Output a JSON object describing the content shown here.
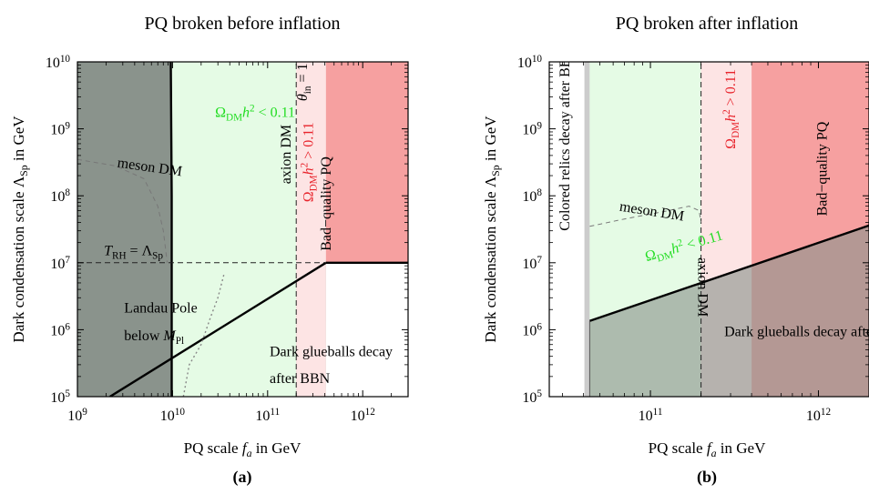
{
  "figure": {
    "sub_captions": [
      "(a)",
      "(b)"
    ]
  },
  "colors": {
    "grey_region": "#8a938c",
    "dark_grey_region": "#6b736c",
    "green_region": "#e5fbe5",
    "light_pink_region": "#fde4e4",
    "red_region": "#f6a0a0",
    "red_grey_overlap": "#b06868",
    "green_text": "#22dd22",
    "red_text": "#e8232b"
  },
  "chart_data": [
    {
      "type": "area",
      "title": "PQ broken before inflation",
      "xlabel": "PQ scale f_a in GeV",
      "ylabel": "Dark condensation scale Λ_Sp in GeV",
      "xscale": "log",
      "yscale": "log",
      "xlim": [
        1000000000.0,
        3000000000000.0
      ],
      "ylim": [
        100000.0,
        10000000000.0
      ],
      "x_ticks": [
        {
          "value": 1000000000.0,
          "mant": "10",
          "exp": "9"
        },
        {
          "value": 10000000000.0,
          "mant": "10",
          "exp": "10"
        },
        {
          "value": 100000000000.0,
          "mant": "10",
          "exp": "11"
        },
        {
          "value": 1000000000000.0,
          "mant": "10",
          "exp": "12"
        }
      ],
      "y_ticks": [
        {
          "value": 100000.0,
          "mant": "10",
          "exp": "5"
        },
        {
          "value": 1000000.0,
          "mant": "10",
          "exp": "6"
        },
        {
          "value": 10000000.0,
          "mant": "10",
          "exp": "7"
        },
        {
          "value": 100000000.0,
          "mant": "10",
          "exp": "8"
        },
        {
          "value": 1000000000.0,
          "mant": "10",
          "exp": "9"
        },
        {
          "value": 10000000000.0,
          "mant": "10",
          "exp": "10"
        }
      ],
      "regions": [
        {
          "name": "landau-pole",
          "color": "grey_region",
          "points": [
            [
              1000000000.0,
              100000.0
            ],
            [
              1000000000.0,
              10000000000.0
            ],
            [
              9800000000.0,
              10000000000.0
            ],
            [
              9800000000.0,
              100000.0
            ]
          ]
        },
        {
          "name": "glueball-wedge",
          "color": "grey_region",
          "points": [
            [
              2200000000.0,
              100000.0
            ],
            [
              410000000000.0,
              10000000.0
            ],
            [
              410000000000.0,
              100000.0
            ]
          ]
        },
        {
          "name": "green-allowed",
          "color": "green_region",
          "points": [
            [
              9800000000.0,
              100000.0
            ],
            [
              9800000000.0,
              10000000000.0
            ],
            [
              200000000000.0,
              10000000000.0
            ],
            [
              200000000000.0,
              100000.0
            ]
          ]
        },
        {
          "name": "overclosure",
          "color": "light_pink_region",
          "points": [
            [
              200000000000.0,
              100000.0
            ],
            [
              200000000000.0,
              10000000000.0
            ],
            [
              410000000000.0,
              10000000000.0
            ],
            [
              410000000000.0,
              100000.0
            ]
          ]
        },
        {
          "name": "bad-quality",
          "color": "red_region",
          "points": [
            [
              410000000000.0,
              10000000.0
            ],
            [
              410000000000.0,
              10000000000.0
            ],
            [
              3000000000000.0,
              10000000000.0
            ],
            [
              3000000000000.0,
              10000000.0
            ]
          ]
        }
      ],
      "lines": [
        {
          "name": "landau-boundary",
          "style": "solid-thick",
          "points": [
            [
              9600000000.0,
              10000000000.0
            ],
            [
              9700000000.0,
              1000000000.0
            ],
            [
              9800000000.0,
              100000000.0
            ],
            [
              9800000000.0,
              100000.0
            ]
          ]
        },
        {
          "name": "glueball-bbn-boundary",
          "style": "solid-thick",
          "points": [
            [
              2200000000.0,
              100000.0
            ],
            [
              410000000000.0,
              10000000.0
            ]
          ]
        },
        {
          "name": "bad-quality-boundary",
          "style": "solid-thick",
          "points": [
            [
              410000000000.0,
              10000000.0
            ],
            [
              3000000000000.0,
              10000000.0
            ]
          ]
        },
        {
          "name": "reheating-line",
          "style": "dashed",
          "points": [
            [
              1000000000.0,
              10000000.0
            ],
            [
              410000000000.0,
              10000000.0
            ]
          ]
        },
        {
          "name": "axion-dm-line",
          "style": "dashed",
          "points": [
            [
              200000000000.0,
              100000.0
            ],
            [
              200000000000.0,
              10000000000.0
            ]
          ]
        },
        {
          "name": "meson-dm-curve",
          "style": "dashed-grey",
          "points": [
            [
              1000000000.0,
              350000000.0
            ],
            [
              2500000000.0,
              280000000.0
            ],
            [
              5000000000.0,
              180000000.0
            ],
            [
              7000000000.0,
              70000000.0
            ],
            [
              8000000000.0,
              30000000.0
            ],
            [
              8800000000.0,
              10000000.0
            ]
          ]
        },
        {
          "name": "meson-dm-curve-lower",
          "style": "dotted-grey",
          "points": [
            [
              13000000000.0,
              100000.0
            ],
            [
              15000000000.0,
              300000.0
            ],
            [
              20000000000.0,
              600000.0
            ],
            [
              25000000000.0,
              1500000.0
            ],
            [
              30000000000.0,
              3000000.0
            ],
            [
              35000000000.0,
              7000000.0
            ]
          ]
        }
      ],
      "annotations": [
        {
          "id": "a-green",
          "parts": [
            {
              "t": "Ω",
              "c": "green_text"
            },
            {
              "t": "DM",
              "sub": true,
              "c": "green_text"
            },
            {
              "t": "h",
              "it": true,
              "c": "green_text"
            },
            {
              "t": "2",
              "sup": true,
              "c": "green_text"
            },
            {
              "t": " < 0.11",
              "c": "green_text"
            }
          ],
          "x": 28000000000.0,
          "y": 1500000000.0
        },
        {
          "id": "a-meson",
          "parts": [
            {
              "t": "meson DM"
            }
          ],
          "x": 2600000000.0,
          "y": 270000000.0,
          "rotate": 8
        },
        {
          "id": "a-trh",
          "parts": [
            {
              "t": "T",
              "it": true
            },
            {
              "t": "RH",
              "sub": true
            },
            {
              "t": " = Λ"
            },
            {
              "t": "Sp",
              "sub": true
            }
          ],
          "x": 1900000000.0,
          "y": 13000000.0
        },
        {
          "id": "a-theta",
          "parts": [
            {
              "t": "θ",
              "it": true
            },
            {
              "t": "in",
              "sub": true
            },
            {
              "t": " = 1"
            }
          ],
          "x": 260000000000.0,
          "y": 2600000000.0,
          "rotate": -90
        },
        {
          "id": "a-axion",
          "parts": [
            {
              "t": "axion DM"
            }
          ],
          "x": 175000000000.0,
          "y": 150000000.0,
          "rotate": -90
        },
        {
          "id": "a-red",
          "parts": [
            {
              "t": "Ω",
              "c": "red_text"
            },
            {
              "t": "DM",
              "sub": true,
              "c": "red_text"
            },
            {
              "t": "h",
              "it": true,
              "c": "red_text"
            },
            {
              "t": "2",
              "sup": true,
              "c": "red_text"
            },
            {
              "t": " > 0.11",
              "c": "red_text"
            }
          ],
          "x": 300000000000.0,
          "y": 80000000.0,
          "rotate": -90
        },
        {
          "id": "a-badpq",
          "parts": [
            {
              "t": "Bad−quality PQ"
            }
          ],
          "x": 460000000000.0,
          "y": 15000000.0,
          "rotate": -90
        },
        {
          "id": "a-landau1",
          "parts": [
            {
              "t": "Landau Pole"
            }
          ],
          "x": 3100000000.0,
          "y": 1800000.0
        },
        {
          "id": "a-landau2",
          "parts": [
            {
              "t": "below "
            },
            {
              "t": "M",
              "it": true
            },
            {
              "t": "Pl",
              "sub": true
            }
          ],
          "x": 3100000000.0,
          "y": 700000.0
        },
        {
          "id": "a-glue1",
          "parts": [
            {
              "t": "Dark glueballs decay"
            }
          ],
          "x": 105000000000.0,
          "y": 400000.0
        },
        {
          "id": "a-glue2",
          "parts": [
            {
              "t": "after BBN"
            }
          ],
          "x": 105000000000.0,
          "y": 160000.0
        }
      ]
    },
    {
      "type": "area",
      "title": "PQ broken after inflation",
      "xlabel": "PQ scale f_a in GeV",
      "ylabel": "Dark condensation scale Λ_Sp in GeV",
      "xscale": "log",
      "yscale": "log",
      "xlim": [
        25000000000.0,
        2000000000000.0
      ],
      "ylim": [
        100000.0,
        10000000000.0
      ],
      "x_ticks": [
        {
          "value": 100000000000.0,
          "mant": "10",
          "exp": "11"
        },
        {
          "value": 1000000000000.0,
          "mant": "10",
          "exp": "12"
        }
      ],
      "y_ticks": [
        {
          "value": 100000.0,
          "mant": "10",
          "exp": "5"
        },
        {
          "value": 1000000.0,
          "mant": "10",
          "exp": "6"
        },
        {
          "value": 10000000.0,
          "mant": "10",
          "exp": "7"
        },
        {
          "value": 100000000.0,
          "mant": "10",
          "exp": "8"
        },
        {
          "value": 1000000000.0,
          "mant": "10",
          "exp": "9"
        },
        {
          "value": 10000000000.0,
          "mant": "10",
          "exp": "10"
        }
      ],
      "regions": [
        {
          "name": "colored-relics-band",
          "color": "#cccccc",
          "points": [
            [
              40500000000.0,
              100000.0
            ],
            [
              40500000000.0,
              10000000000.0
            ],
            [
              43500000000.0,
              10000000000.0
            ],
            [
              43500000000.0,
              100000.0
            ]
          ]
        },
        {
          "name": "green-allowed",
          "color": "green_region",
          "points": [
            [
              43500000000.0,
              100000.0
            ],
            [
              43500000000.0,
              10000000000.0
            ],
            [
              200000000000.0,
              10000000000.0
            ],
            [
              200000000000.0,
              100000.0
            ]
          ]
        },
        {
          "name": "overclosure",
          "color": "light_pink_region",
          "points": [
            [
              200000000000.0,
              100000.0
            ],
            [
              200000000000.0,
              10000000000.0
            ],
            [
              400000000000.0,
              10000000000.0
            ],
            [
              400000000000.0,
              100000.0
            ]
          ]
        },
        {
          "name": "bad-quality",
          "color": "red_region",
          "points": [
            [
              400000000000.0,
              100000.0
            ],
            [
              400000000000.0,
              10000000000.0
            ],
            [
              2000000000000.0,
              10000000000.0
            ],
            [
              2000000000000.0,
              100000.0
            ]
          ]
        },
        {
          "name": "glueball-region",
          "color": "grey_region",
          "points": [
            [
              43500000000.0,
              100000.0
            ],
            [
              43500000000.0,
              1350000.0
            ],
            [
              2000000000000.0,
              36000000.0
            ],
            [
              2000000000000.0,
              100000.0
            ]
          ]
        }
      ],
      "lines": [
        {
          "name": "glueball-bbn-boundary",
          "style": "solid-thick",
          "points": [
            [
              43500000000.0,
              1350000.0
            ],
            [
              2000000000000.0,
              36000000.0
            ]
          ]
        },
        {
          "name": "glueball-left-edge",
          "style": "solid-thin",
          "points": [
            [
              43500000000.0,
              100000.0
            ],
            [
              43500000000.0,
              1350000.0
            ]
          ]
        },
        {
          "name": "axion-dm-line",
          "style": "dashed",
          "points": [
            [
              200000000000.0,
              100000.0
            ],
            [
              200000000000.0,
              10000000000.0
            ]
          ]
        },
        {
          "name": "meson-dm-curve",
          "style": "dashed-grey",
          "points": [
            [
              43500000000.0,
              35000000.0
            ],
            [
              70000000000.0,
              45000000.0
            ],
            [
              120000000000.0,
              58000000.0
            ],
            [
              170000000000.0,
              70000000.0
            ],
            [
              195000000000.0,
              60000000.0
            ],
            [
              200000000000.0,
              40000000.0
            ]
          ]
        }
      ],
      "annotations": [
        {
          "id": "b-colored",
          "parts": [
            {
              "t": "Colored relics decay after BBN"
            }
          ],
          "x": 33000000000.0,
          "y": 30000000.0,
          "rotate": -90
        },
        {
          "id": "b-meson",
          "parts": [
            {
              "t": "meson  DM"
            }
          ],
          "x": 65000000000.0,
          "y": 60000000.0,
          "rotate": 9
        },
        {
          "id": "b-green",
          "parts": [
            {
              "t": "Ω",
              "c": "green_text"
            },
            {
              "t": "DM",
              "sub": true,
              "c": "green_text"
            },
            {
              "t": "h",
              "it": true,
              "c": "green_text"
            },
            {
              "t": "2",
              "sup": true,
              "c": "green_text"
            },
            {
              "t": " < 0.11",
              "c": "green_text"
            }
          ],
          "x": 95000000000.0,
          "y": 10500000.0,
          "rotate": -16
        },
        {
          "id": "b-axion",
          "parts": [
            {
              "t": "axion DM"
            }
          ],
          "x": 193000000000.0,
          "y": 12000000.0,
          "rotate": 90
        },
        {
          "id": "b-red",
          "parts": [
            {
              "t": "Ω",
              "c": "red_text"
            },
            {
              "t": "DM",
              "sub": true,
              "c": "red_text"
            },
            {
              "t": "h",
              "it": true,
              "c": "red_text"
            },
            {
              "t": "2",
              "sup": true,
              "c": "red_text"
            },
            {
              "t": " > 0.11",
              "c": "red_text"
            }
          ],
          "x": 320000000000.0,
          "y": 500000000.0,
          "rotate": -90
        },
        {
          "id": "b-badpq",
          "parts": [
            {
              "t": "Bad−quality PQ"
            }
          ],
          "x": 1120000000000.0,
          "y": 50000000.0,
          "rotate": -90
        },
        {
          "id": "b-glue",
          "parts": [
            {
              "t": "Dark glueballs decay after BBN"
            }
          ],
          "x": 275000000000.0,
          "y": 800000.0
        }
      ]
    }
  ]
}
